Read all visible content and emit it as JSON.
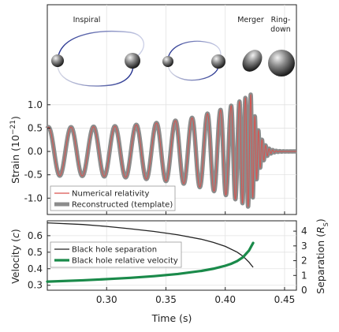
{
  "chart_data": [
    {
      "type": "line",
      "ylabel": "Strain (10",
      "ylabel_exp": "−21",
      "ylabel_end": ")",
      "ylim": [
        -1.35,
        1.25
      ],
      "xlim": [
        0.25,
        0.46
      ],
      "yticks": [
        "-1.0",
        "-0.5",
        "0.0",
        "0.5",
        "1.0"
      ],
      "ytick_values": [
        -1.0,
        -0.5,
        0.0,
        0.5,
        1.0
      ],
      "grid": true,
      "legend_position": "lower-left",
      "legend": [
        "Numerical relativity",
        "Reconstructed (template)"
      ],
      "annotations": [
        {
          "text": "Inspiral",
          "x": 0.296
        },
        {
          "text": "Merger",
          "x": 0.403
        },
        {
          "text": "Ring-",
          "x": 0.428
        },
        {
          "text": "down",
          "x": 0.428
        }
      ],
      "series": [
        {
          "name": "Numerical relativity",
          "color": "#d9534f",
          "model": {
            "t_merge": 0.4225,
            "peaks": [
              [
                0.251,
                0.52
              ],
              [
                0.27,
                0.52
              ],
              [
                0.289,
                0.53
              ],
              [
                0.307,
                0.54
              ],
              [
                0.325,
                0.57
              ],
              [
                0.342,
                0.61
              ],
              [
                0.358,
                0.66
              ],
              [
                0.372,
                0.72
              ],
              [
                0.385,
                0.81
              ],
              [
                0.396,
                0.89
              ],
              [
                0.405,
                0.98
              ],
              [
                0.412,
                1.07
              ],
              [
                0.417,
                1.15
              ],
              [
                0.4215,
                1.22
              ],
              [
                0.425,
                0.75
              ],
              [
                0.428,
                0.45
              ],
              [
                0.431,
                0.25
              ],
              [
                0.434,
                0.13
              ],
              [
                0.437,
                0.06
              ],
              [
                0.44,
                0.03
              ]
            ]
          }
        },
        {
          "name": "Reconstructed (template)",
          "color": "#8c8c8c"
        }
      ]
    },
    {
      "type": "line",
      "xlabel": "Time (s)",
      "ylabel_left": "Velocity (",
      "ylabel_left_var": "c",
      "ylabel_left_end": ")",
      "ylabel_right": "Separation (",
      "ylabel_right_var": "R",
      "ylabel_right_sub": "S",
      "ylabel_right_end": ")",
      "xlim": [
        0.25,
        0.46
      ],
      "xticks": [
        "0.30",
        "0.35",
        "0.40",
        "0.45"
      ],
      "xtick_values": [
        0.3,
        0.35,
        0.4,
        0.45
      ],
      "ylim_left": [
        0.27,
        0.69
      ],
      "yticks_left": [
        "0.3",
        "0.4",
        "0.5",
        "0.6"
      ],
      "ytick_values_left": [
        0.3,
        0.4,
        0.5,
        0.6
      ],
      "ylim_right": [
        0,
        4.7
      ],
      "yticks_right": [
        "0",
        "1",
        "2",
        "3",
        "4"
      ],
      "ytick_values_right": [
        0,
        1,
        2,
        3,
        4
      ],
      "grid": true,
      "legend_position": "left",
      "legend": [
        "Black hole separation",
        "Black hole relative velocity"
      ],
      "series": [
        {
          "name": "Black hole separation",
          "axis": "right",
          "color": "#222222",
          "x": [
            0.25,
            0.28,
            0.3,
            0.32,
            0.34,
            0.36,
            0.38,
            0.39,
            0.4,
            0.41,
            0.415,
            0.42,
            0.4235
          ],
          "y": [
            4.56,
            4.45,
            4.32,
            4.16,
            3.98,
            3.75,
            3.45,
            3.24,
            2.97,
            2.58,
            2.3,
            1.9,
            1.55
          ]
        },
        {
          "name": "Black hole relative velocity",
          "axis": "left",
          "color": "#1a8a4a",
          "x": [
            0.25,
            0.28,
            0.3,
            0.32,
            0.34,
            0.36,
            0.38,
            0.39,
            0.4,
            0.405,
            0.41,
            0.415,
            0.42,
            0.4235
          ],
          "y": [
            0.322,
            0.33,
            0.337,
            0.345,
            0.355,
            0.368,
            0.387,
            0.4,
            0.418,
            0.43,
            0.446,
            0.47,
            0.51,
            0.556
          ]
        }
      ]
    }
  ]
}
